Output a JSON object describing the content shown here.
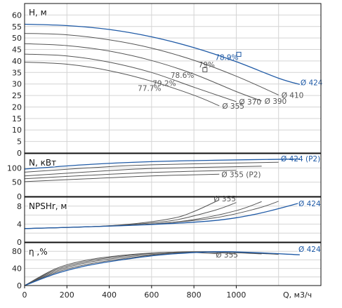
{
  "chart_data": [
    {
      "type": "line",
      "title": "",
      "ylabel": "H, м",
      "xlabel": "Q, м3/ч",
      "xlim": [
        0,
        1400
      ],
      "ylim": [
        0,
        65
      ],
      "yticks": [
        0,
        5,
        10,
        15,
        20,
        25,
        30,
        35,
        40,
        45,
        50,
        55,
        60
      ],
      "series": [
        {
          "name": "Ø 355",
          "color": "#555555",
          "x": [
            0,
            200,
            400,
            600,
            800,
            920
          ],
          "y": [
            39.5,
            38.6,
            35.8,
            31.2,
            25.1,
            20.5
          ]
        },
        {
          "name": "Ø 370",
          "color": "#555555",
          "x": [
            0,
            200,
            400,
            600,
            800,
            1000
          ],
          "y": [
            43.0,
            42.2,
            39.5,
            35.0,
            28.6,
            22.3
          ]
        },
        {
          "name": "Ø 390",
          "color": "#555555",
          "x": [
            0,
            200,
            400,
            600,
            800,
            1000,
            1120
          ],
          "y": [
            47.5,
            46.7,
            44.3,
            40.2,
            34.3,
            26.7,
            22.6
          ]
        },
        {
          "name": "Ø 410",
          "color": "#555555",
          "x": [
            0,
            200,
            400,
            600,
            800,
            1000,
            1200
          ],
          "y": [
            52.0,
            51.4,
            49.2,
            45.6,
            40.3,
            33.4,
            25.2
          ]
        },
        {
          "name": "Ø 424",
          "color": "#1f5aa6",
          "x": [
            0,
            200,
            400,
            600,
            800,
            1000,
            1200,
            1300
          ],
          "y": [
            56.0,
            55.4,
            53.7,
            50.5,
            45.8,
            39.7,
            32.5,
            29.8
          ]
        }
      ],
      "efficiency_labels": [
        {
          "text": "77.7%",
          "x": 590,
          "y": 27.0
        },
        {
          "text": "79.2%",
          "x": 660,
          "y": 29.2
        },
        {
          "text": "78.6%",
          "x": 745,
          "y": 32.7
        },
        {
          "text": "79%",
          "x": 860,
          "y": 37.2
        },
        {
          "text": "78.9%",
          "x": 955,
          "y": 40.5
        }
      ],
      "markers": [
        {
          "x": 852,
          "y": 36.2,
          "color": "#555555"
        },
        {
          "x": 1012,
          "y": 42.9,
          "color": "#1f5aa6"
        }
      ]
    },
    {
      "type": "line",
      "ylabel": "N, кВт",
      "xlim": [
        0,
        1400
      ],
      "ylim": [
        0,
        150
      ],
      "yticks": [
        0,
        50,
        100
      ],
      "series": [
        {
          "name": "Ø 355 (P2)",
          "color": "#555555",
          "x": [
            0,
            300,
            600,
            920
          ],
          "y": [
            52,
            62,
            72,
            78
          ]
        },
        {
          "name": "Ø 370",
          "color": "#555555",
          "x": [
            0,
            300,
            600,
            1000
          ],
          "y": [
            62,
            74,
            84,
            92
          ]
        },
        {
          "name": "Ø 390",
          "color": "#555555",
          "x": [
            0,
            300,
            600,
            1120
          ],
          "y": [
            72,
            86,
            98,
            106
          ]
        },
        {
          "name": "Ø 410",
          "color": "#555555",
          "x": [
            0,
            300,
            600,
            1200
          ],
          "y": [
            85,
            100,
            111,
            120
          ]
        },
        {
          "name": "Ø 424 (P2)",
          "color": "#1f5aa6",
          "x": [
            0,
            300,
            600,
            900,
            1300
          ],
          "y": [
            96,
            112,
            122,
            127,
            131
          ]
        }
      ]
    },
    {
      "type": "line",
      "ylabel": "NPSHr, м",
      "xlim": [
        0,
        1400
      ],
      "ylim": [
        0,
        10
      ],
      "yticks": [
        0,
        4,
        8
      ],
      "series": [
        {
          "name": "Ø 355",
          "color": "#555555",
          "x": [
            0,
            300,
            500,
            700,
            800,
            920
          ],
          "y": [
            3.0,
            3.4,
            4.0,
            5.3,
            6.8,
            9.4
          ]
        },
        {
          "name": "Ø 370",
          "color": "#555555",
          "x": [
            0,
            300,
            500,
            700,
            900,
            1000
          ],
          "y": [
            3.0,
            3.4,
            3.9,
            4.8,
            7.1,
            8.8
          ]
        },
        {
          "name": "Ø 390",
          "color": "#555555",
          "x": [
            0,
            300,
            600,
            800,
            1000,
            1120
          ],
          "y": [
            3.0,
            3.4,
            4.0,
            5.0,
            7.0,
            9.0
          ]
        },
        {
          "name": "Ø 410",
          "color": "#555555",
          "x": [
            0,
            300,
            600,
            900,
            1100,
            1200
          ],
          "y": [
            3.0,
            3.4,
            4.0,
            5.4,
            7.5,
            9.1
          ]
        },
        {
          "name": "Ø 424",
          "color": "#1f5aa6",
          "x": [
            0,
            300,
            600,
            900,
            1100,
            1300
          ],
          "y": [
            3.0,
            3.4,
            3.9,
            4.8,
            6.3,
            8.7
          ]
        }
      ]
    },
    {
      "type": "line",
      "ylabel": "η ,%",
      "xlim": [
        0,
        1400
      ],
      "ylim": [
        0,
        100
      ],
      "yticks": [
        0,
        40,
        80
      ],
      "series": [
        {
          "name": "Ø 355",
          "color": "#555555",
          "x": [
            0,
            150,
            300,
            450,
            600,
            750,
            920
          ],
          "y": [
            0,
            40,
            60,
            70,
            76,
            78,
            74
          ]
        },
        {
          "name": "Ø 370",
          "color": "#555555",
          "x": [
            0,
            150,
            300,
            450,
            600,
            800,
            1000
          ],
          "y": [
            0,
            37,
            57,
            68,
            75,
            79,
            74
          ]
        },
        {
          "name": "Ø 390",
          "color": "#555555",
          "x": [
            0,
            150,
            300,
            500,
            700,
            850,
            1120
          ],
          "y": [
            0,
            34,
            54,
            68,
            76,
            79,
            74
          ]
        },
        {
          "name": "Ø 410",
          "color": "#555555",
          "x": [
            0,
            150,
            300,
            500,
            700,
            900,
            1200
          ],
          "y": [
            0,
            31,
            50,
            65,
            75,
            79,
            73
          ]
        },
        {
          "name": "Ø 424",
          "color": "#1f5aa6",
          "x": [
            0,
            150,
            300,
            500,
            700,
            950,
            1300
          ],
          "y": [
            0,
            28,
            47,
            63,
            74,
            79,
            72
          ]
        }
      ]
    }
  ],
  "xaxis": {
    "ticks": [
      0,
      200,
      400,
      600,
      800,
      1000
    ],
    "label": "Q, м3/ч"
  }
}
